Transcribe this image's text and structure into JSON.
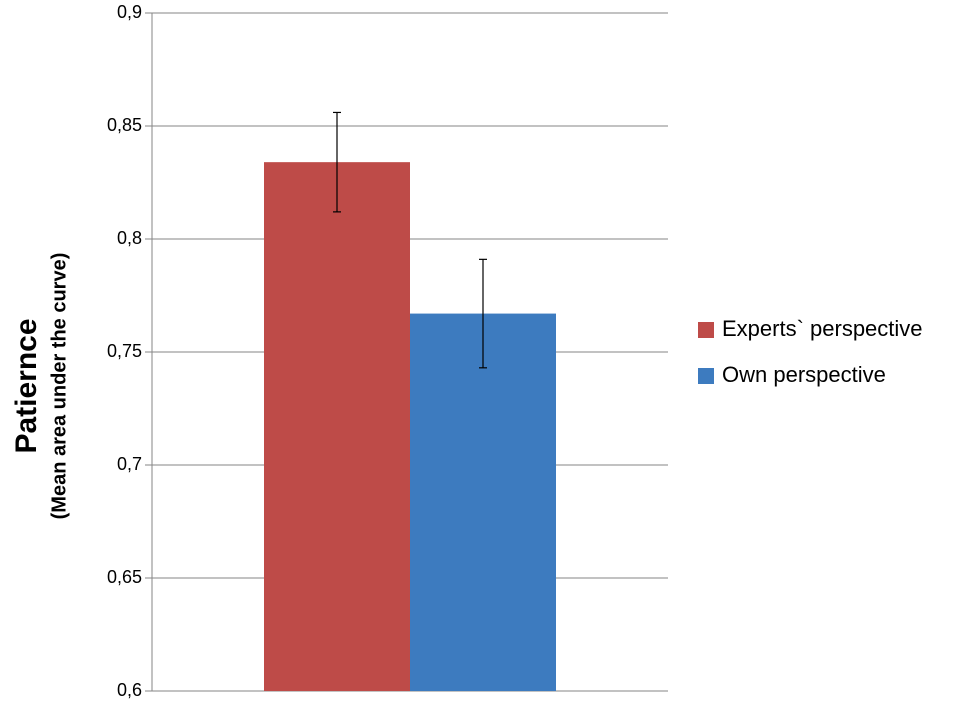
{
  "chart_data": {
    "type": "bar",
    "ylabel": "Patiernce",
    "ylabel_note": "(Mean area under the curve)",
    "categories": [
      null
    ],
    "series": [
      {
        "name": "Experts` perspective",
        "color": "#be4b48",
        "values": [
          0.834
        ],
        "errors": [
          0.022
        ]
      },
      {
        "name": "Own perspective",
        "color": "#3d7bbf",
        "values": [
          0.767
        ],
        "errors": [
          0.024
        ]
      }
    ],
    "ylim": [
      0.6,
      0.9
    ],
    "yticks": [
      {
        "value": 0.6,
        "label": "0,6"
      },
      {
        "value": 0.65,
        "label": "0,65"
      },
      {
        "value": 0.7,
        "label": "0,7"
      },
      {
        "value": 0.75,
        "label": "0,75"
      },
      {
        "value": 0.8,
        "label": "0,8"
      },
      {
        "value": 0.85,
        "label": "0,85"
      },
      {
        "value": 0.9,
        "label": "0,9"
      }
    ],
    "grid": true,
    "legend": "right"
  }
}
